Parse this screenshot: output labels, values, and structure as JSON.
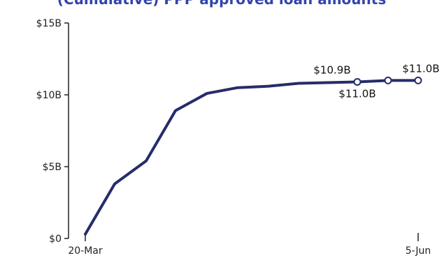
{
  "title": "(Cumulative) PPP approved loan amounts",
  "colors": {
    "line": "#262c6b",
    "title": "#3344aa",
    "axis": "#222222",
    "marker_fill": "#ffffff"
  },
  "chart_data": {
    "type": "line",
    "title": "(Cumulative) PPP approved loan amounts",
    "xlabel": "",
    "ylabel": "",
    "x_tick_labels": [
      "20-Mar",
      "5-Jun"
    ],
    "x_range": [
      "20-Mar",
      "5-Jun"
    ],
    "y_tick_labels": [
      "$0",
      "$5B",
      "$10B",
      "$15B"
    ],
    "ylim": [
      0,
      15
    ],
    "y_unit": "$B",
    "grid": false,
    "series": [
      {
        "values_in_billions": [
          0.3,
          3.8,
          5.4,
          8.9,
          10.1,
          10.5,
          10.6,
          10.8,
          10.9,
          11.0,
          11.0
        ],
        "annotations": [
          {
            "point": 8,
            "label": "$10.9B"
          },
          {
            "point": 9,
            "label": "$11.0B"
          },
          {
            "point": 10,
            "label": "$11.0B"
          }
        ]
      }
    ]
  }
}
